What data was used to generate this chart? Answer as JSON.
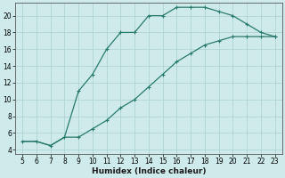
{
  "x_curve": [
    5,
    6,
    7,
    8,
    9,
    10,
    11,
    12,
    13,
    14,
    15,
    16,
    17,
    18,
    19,
    20,
    21,
    22,
    23
  ],
  "y_curve": [
    5,
    5,
    4.5,
    5.5,
    11,
    13,
    16,
    18,
    18,
    20,
    20,
    21,
    21,
    21,
    20.5,
    20,
    19,
    18,
    17.5
  ],
  "x_line": [
    5,
    6,
    7,
    8,
    9,
    10,
    11,
    12,
    13,
    14,
    15,
    16,
    17,
    18,
    19,
    20,
    21,
    22,
    23
  ],
  "y_line": [
    5,
    5,
    4.5,
    5.5,
    5.5,
    6.5,
    7.5,
    9,
    10,
    11.5,
    13,
    14.5,
    15.5,
    16.5,
    17,
    17.5,
    17.5,
    17.5,
    17.5
  ],
  "line_color": "#2a7a6e",
  "bg_color": "#ceeaea",
  "grid_color": "#aacfcf",
  "xlabel": "Humidex (Indice chaleur)",
  "xlim": [
    4.5,
    23.5
  ],
  "ylim": [
    3.5,
    21.5
  ],
  "xticks": [
    5,
    6,
    7,
    8,
    9,
    10,
    11,
    12,
    13,
    14,
    15,
    16,
    17,
    18,
    19,
    20,
    21,
    22,
    23
  ],
  "yticks": [
    4,
    6,
    8,
    10,
    12,
    14,
    16,
    18,
    20
  ],
  "xlabel_fontsize": 6.5,
  "tick_fontsize": 5.5,
  "figsize": [
    3.2,
    2.0
  ],
  "dpi": 100
}
